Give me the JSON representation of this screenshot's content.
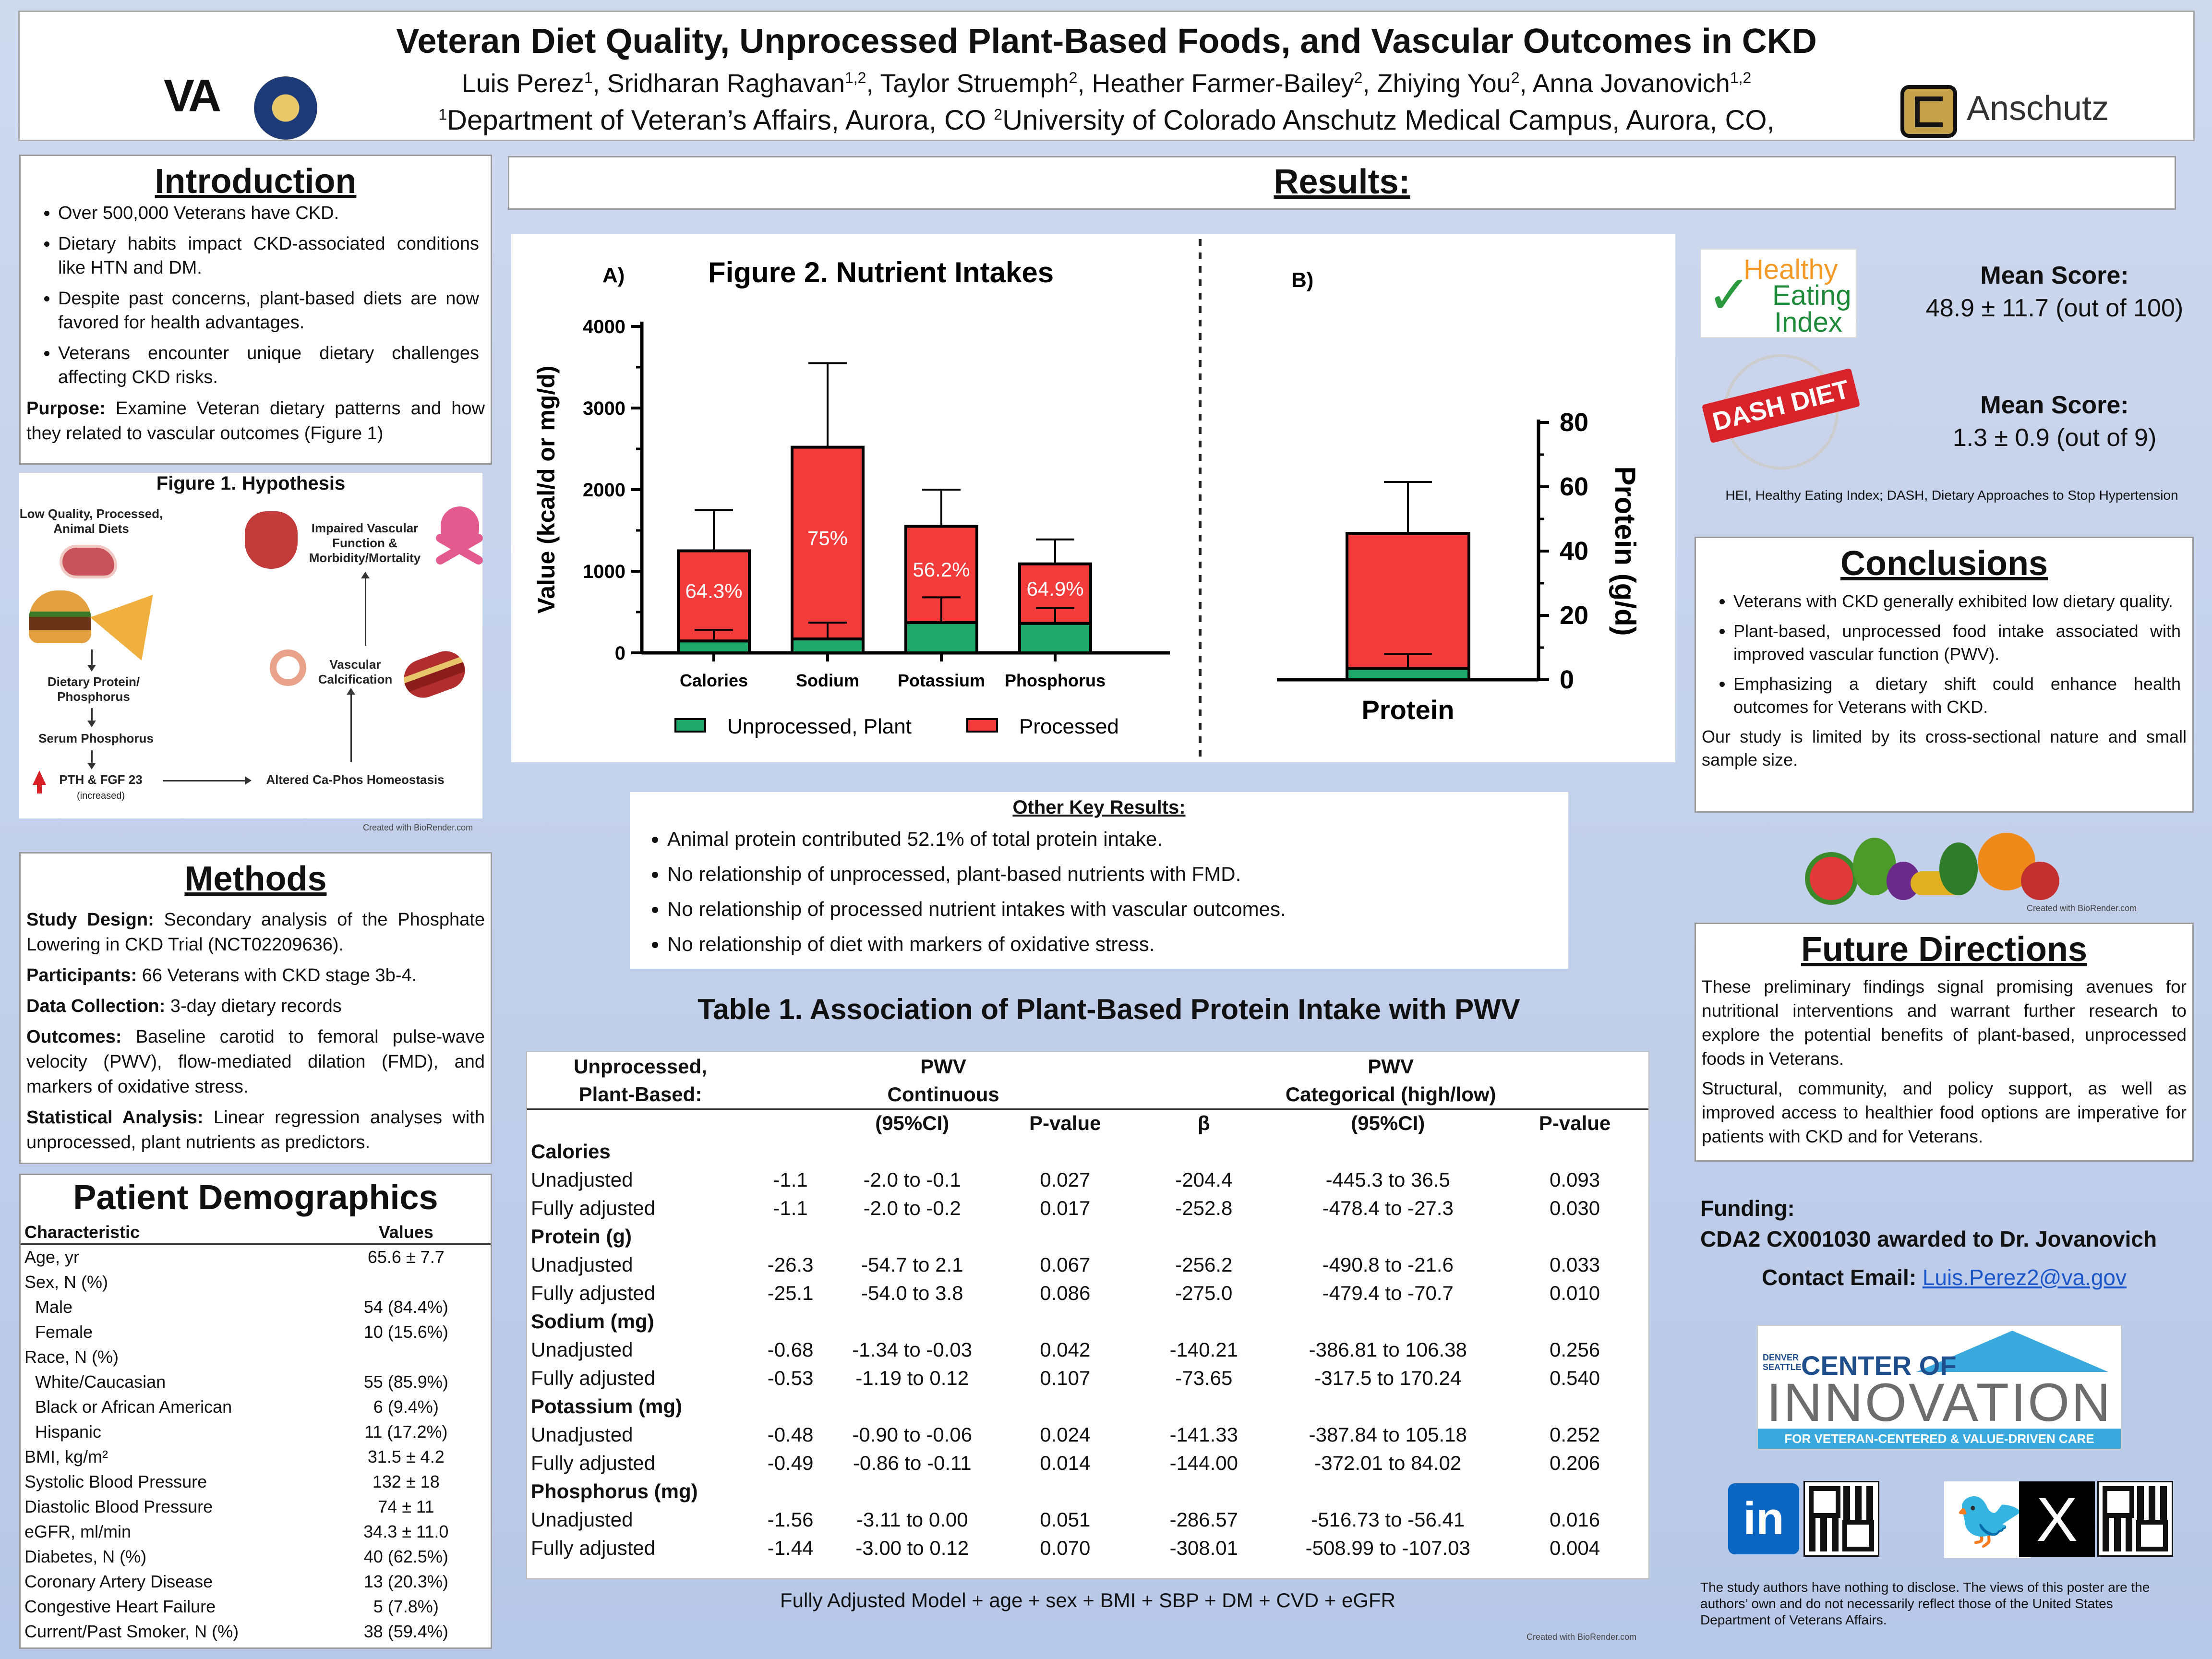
{
  "header": {
    "title": "Veteran Diet Quality, Unprocessed Plant-Based Foods, and Vascular Outcomes in CKD",
    "authors": [
      {
        "name": "Luis Perez",
        "sup": "1"
      },
      {
        "name": "Sridharan Raghavan",
        "sup": "1,2"
      },
      {
        "name": "Taylor Struemph",
        "sup": "2"
      },
      {
        "name": "Heather Farmer-Bailey",
        "sup": "2"
      },
      {
        "name": "Zhiying You",
        "sup": "2"
      },
      {
        "name": "Anna Jovanovich",
        "sup": "1,2"
      }
    ],
    "affiliation_1_sup": "1",
    "affiliation_1": "Department of Veteran’s Affairs, Aurora, CO",
    "affiliation_2_sup": "2",
    "affiliation_2": "University of Colorado Anschutz Medical Campus, Aurora, CO,",
    "va_logo": "VA",
    "anschutz_logo": "Anschutz"
  },
  "introduction": {
    "title": "Introduction",
    "bullets": [
      "Over 500,000 Veterans have CKD.",
      "Dietary habits impact CKD-associated conditions like HTN and DM.",
      "Despite past concerns, plant-based diets are now favored for health advantages.",
      "Veterans encounter unique dietary challenges affecting CKD risks."
    ],
    "purpose_label": "Purpose:",
    "purpose_text": " Examine Veteran dietary patterns and how they related to vascular outcomes (Figure 1)"
  },
  "figure1": {
    "title": "Figure 1. Hypothesis",
    "nodes": {
      "diet": "Low Quality, Processed, Animal Diets",
      "protein": "Dietary Protein/ Phosphorus",
      "serum": "Serum Phosphorus",
      "pth": "PTH & FGF 23",
      "pth_note": "(increased)",
      "homeostasis": "Altered Ca-Phos Homeostasis",
      "calcification": "Vascular Calcification",
      "vascular": "Impaired Vascular Function & Morbidity/Mortality"
    },
    "credit": "Created with BioRender.com"
  },
  "methods": {
    "title": "Methods",
    "items": [
      {
        "label": "Study Design:",
        "text": " Secondary analysis of the Phosphate Lowering in CKD Trial (NCT02209636)."
      },
      {
        "label": "Participants:",
        "text": " 66 Veterans with CKD stage 3b-4."
      },
      {
        "label": "Data Collection:",
        "text": " 3-day dietary records"
      },
      {
        "label": "Outcomes:",
        "text": " Baseline carotid to femoral pulse-wave velocity (PWV), flow-mediated dilation (FMD), and markers of oxidative stress."
      },
      {
        "label": "Statistical Analysis:",
        "text": " Linear regression analyses with unprocessed, plant nutrients as predictors."
      }
    ]
  },
  "demographics": {
    "title": "Patient Demographics",
    "col_characteristic": "Characteristic",
    "col_values": "Values",
    "rows": [
      {
        "c": "Age, yr",
        "v": "65.6 ± 7.7",
        "indent": false
      },
      {
        "c": "Sex, N (%)",
        "v": "",
        "indent": false
      },
      {
        "c": "Male",
        "v": "54 (84.4%)",
        "indent": true
      },
      {
        "c": "Female",
        "v": "10 (15.6%)",
        "indent": true
      },
      {
        "c": "Race, N (%)",
        "v": "",
        "indent": false
      },
      {
        "c": "White/Caucasian",
        "v": "55 (85.9%)",
        "indent": true
      },
      {
        "c": "Black or African American",
        "v": "6 (9.4%)",
        "indent": true
      },
      {
        "c": "Hispanic",
        "v": "11 (17.2%)",
        "indent": true
      },
      {
        "c": "BMI, kg/m²",
        "v": "31.5 ± 4.2",
        "indent": false
      },
      {
        "c": "Systolic Blood Pressure",
        "v": "132 ± 18",
        "indent": false
      },
      {
        "c": "Diastolic Blood Pressure",
        "v": "74 ± 11",
        "indent": false
      },
      {
        "c": "eGFR, ml/min",
        "v": "34.3 ± 11.0",
        "indent": false
      },
      {
        "c": "Diabetes, N (%)",
        "v": "40 (62.5%)",
        "indent": false
      },
      {
        "c": "Coronary Artery Disease",
        "v": "13 (20.3%)",
        "indent": false
      },
      {
        "c": "Congestive Heart Failure",
        "v": "5 (7.8%)",
        "indent": false
      },
      {
        "c": "Current/Past Smoker, N (%)",
        "v": "38 (59.4%)",
        "indent": false
      }
    ]
  },
  "results": {
    "title": "Results:"
  },
  "chart_data": [
    {
      "type": "bar",
      "stacked": true,
      "panel_label": "A)",
      "title": "Figure 2. Nutrient Intakes",
      "ylabel": "Value (kcal/d or mg/d)",
      "ylim": [
        0,
        4000
      ],
      "yticks": [
        "0",
        "1000",
        "2000",
        "3000",
        "4000"
      ],
      "categories": [
        "Calories",
        "Sodium",
        "Potassium",
        "Phosphorus"
      ],
      "series": [
        {
          "name": "Unprocessed, Plant",
          "color": "#1faa6b",
          "values": [
            145,
            170,
            370,
            360
          ],
          "err": [
            135,
            200,
            310,
            190
          ]
        },
        {
          "name": "Processed",
          "color": "#f23b3b",
          "values": [
            1105,
            2350,
            1180,
            730
          ],
          "err": [
            500,
            1030,
            450,
            300
          ]
        }
      ],
      "labels": [
        "64.3%",
        "75%",
        "56.2%",
        "64.9%"
      ],
      "legend": "bottom"
    },
    {
      "type": "bar",
      "stacked": true,
      "panel_label": "B)",
      "ylabel": "Protein (g/d)",
      "ylim": [
        0,
        80
      ],
      "yticks": [
        "0",
        "20",
        "40",
        "60",
        "80"
      ],
      "categories": [
        "Protein"
      ],
      "series": [
        {
          "name": "Unprocessed, Plant",
          "color": "#1faa6b",
          "values": [
            3.5
          ],
          "err": [
            4.5
          ]
        },
        {
          "name": "Processed",
          "color": "#f23b3b",
          "values": [
            42
          ],
          "err": [
            16
          ]
        }
      ]
    }
  ],
  "other_results": {
    "title": "Other Key Results:",
    "bullets": [
      "Animal protein contributed 52.1% of total protein intake.",
      "No relationship of unprocessed, plant-based nutrients with FMD.",
      "No relationship of processed nutrient intakes with vascular outcomes.",
      "No relationship of diet with markers of oxidative stress."
    ]
  },
  "table1": {
    "title": "Table 1. Association of Plant-Based Protein Intake with PWV",
    "hdr_col1a": "Unprocessed,",
    "hdr_col1b": "Plant-Based:",
    "hdr_cont_a": "PWV",
    "hdr_cont_b": "Continuous",
    "hdr_cat_a": "PWV",
    "hdr_cat_b": "Categorical (high/low)",
    "sub_ci": "(95%CI)",
    "sub_p": "P-value",
    "sub_beta": "β",
    "sub_ci2": "(95%CI)",
    "sub_p2": "P-value",
    "groups": [
      {
        "name": "Calories",
        "rows": [
          {
            "label": "Unadjusted",
            "b1": "-1.1",
            "ci1": "-2.0 to -0.1",
            "p1": "0.027",
            "b2": "-204.4",
            "ci2": "-445.3 to 36.5",
            "p2": "0.093"
          },
          {
            "label": "Fully adjusted",
            "b1": "-1.1",
            "ci1": "-2.0 to -0.2",
            "p1": "0.017",
            "b2": "-252.8",
            "ci2": "-478.4 to -27.3",
            "p2": "0.030"
          }
        ]
      },
      {
        "name": "Protein (g)",
        "rows": [
          {
            "label": "Unadjusted",
            "b1": "-26.3",
            "ci1": "-54.7 to 2.1",
            "p1": "0.067",
            "b2": "-256.2",
            "ci2": "-490.8 to -21.6",
            "p2": "0.033"
          },
          {
            "label": "Fully adjusted",
            "b1": "-25.1",
            "ci1": "-54.0 to 3.8",
            "p1": "0.086",
            "b2": "-275.0",
            "ci2": "-479.4 to -70.7",
            "p2": "0.010"
          }
        ]
      },
      {
        "name": "Sodium (mg)",
        "rows": [
          {
            "label": "Unadjusted",
            "b1": "-0.68",
            "ci1": "-1.34 to -0.03",
            "p1": "0.042",
            "b2": "-140.21",
            "ci2": "-386.81 to 106.38",
            "p2": "0.256"
          },
          {
            "label": "Fully adjusted",
            "b1": "-0.53",
            "ci1": "-1.19 to 0.12",
            "p1": "0.107",
            "b2": "-73.65",
            "ci2": "-317.5 to 170.24",
            "p2": "0.540"
          }
        ]
      },
      {
        "name": "Potassium (mg)",
        "rows": [
          {
            "label": "Unadjusted",
            "b1": "-0.48",
            "ci1": "-0.90 to -0.06",
            "p1": "0.024",
            "b2": "-141.33",
            "ci2": "-387.84 to 105.18",
            "p2": "0.252"
          },
          {
            "label": "Fully adjusted",
            "b1": "-0.49",
            "ci1": "-0.86 to -0.11",
            "p1": "0.014",
            "b2": "-144.00",
            "ci2": "-372.01 to 84.02",
            "p2": "0.206"
          }
        ]
      },
      {
        "name": "Phosphorus (mg)",
        "rows": [
          {
            "label": "Unadjusted",
            "b1": "-1.56",
            "ci1": "-3.11 to 0.00",
            "p1": "0.051",
            "b2": "-286.57",
            "ci2": "-516.73 to -56.41",
            "p2": "0.016"
          },
          {
            "label": "Fully adjusted",
            "b1": "-1.44",
            "ci1": "-3.00 to 0.12",
            "p1": "0.070",
            "b2": "-308.01",
            "ci2": "-508.99 to -107.03",
            "p2": "0.004"
          }
        ]
      }
    ],
    "footnote": "Fully Adjusted Model + age + sex + BMI + SBP + DM + CVD + eGFR",
    "credit": "Created with BioRender.com"
  },
  "scores": {
    "hei_logo_1": "Healthy",
    "hei_logo_2": "Eating",
    "hei_logo_3": "Index",
    "hei_label": "Mean Score:",
    "hei_value": "48.9 ± 11.7 (out of 100)",
    "dash_logo": "DASH DIET",
    "dash_label": "Mean Score:",
    "dash_value": "1.3 ± 0.9 (out of 9)",
    "abbrev": "HEI, Healthy Eating Index; DASH, Dietary Approaches to Stop Hypertension"
  },
  "conclusions": {
    "title": "Conclusions",
    "bullets": [
      "Veterans with CKD generally exhibited low dietary quality.",
      "Plant-based, unprocessed food intake associated with improved vascular function (PWV).",
      "Emphasizing a dietary shift could enhance health outcomes for Veterans with CKD."
    ],
    "note": "Our study is limited by its cross-sectional nature and small sample size.",
    "credit": "Created with BioRender.com"
  },
  "future": {
    "title": "Future Directions",
    "p1": "These preliminary findings signal promising avenues for nutritional interventions and warrant further research to explore the potential benefits of plant-based, unprocessed foods in Veterans.",
    "p2": "Structural, community, and policy support, as well as improved access to healthier food options are imperative for patients with CKD and for Veterans."
  },
  "funding": {
    "label": "Funding:",
    "text": "CDA2 CX001030 awarded to Dr. Jovanovich"
  },
  "contact": {
    "label": "Contact Email:",
    "email": "Luis.Perez2@va.gov"
  },
  "coi_logo": {
    "small_1": "DENVER",
    "small_2": "SEATTLE",
    "center": "CENTER OF",
    "innovation": "INNOVATION",
    "band": "FOR VETERAN-CENTERED & VALUE-DRIVEN CARE"
  },
  "social": {
    "linkedin": "in",
    "x": "X"
  },
  "disclosure": "The study authors have nothing to disclose. The views of this poster are the authors’ own and do not necessarily reflect those of the United States Department of Veterans Affairs."
}
